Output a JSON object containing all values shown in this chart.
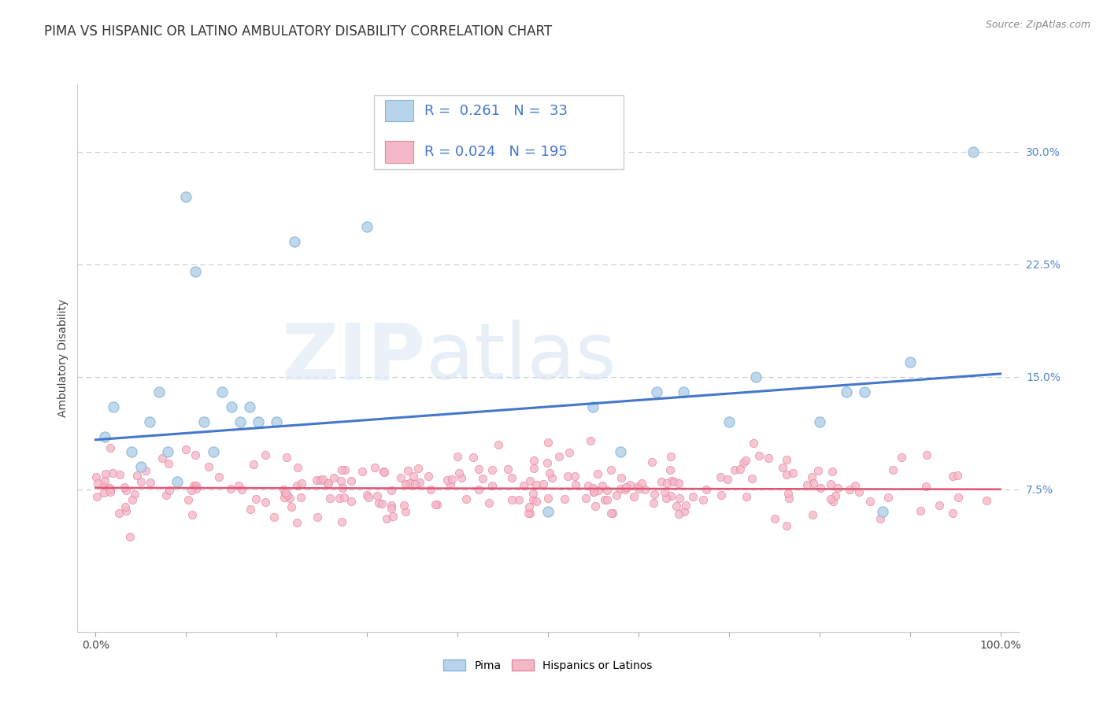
{
  "title": "PIMA VS HISPANIC OR LATINO AMBULATORY DISABILITY CORRELATION CHART",
  "source_text": "Source: ZipAtlas.com",
  "ylabel": "Ambulatory Disability",
  "xlim": [
    -0.02,
    1.02
  ],
  "ylim": [
    -0.02,
    0.345
  ],
  "yticks": [
    0.075,
    0.15,
    0.225,
    0.3
  ],
  "yticklabels": [
    "7.5%",
    "15.0%",
    "22.5%",
    "30.0%"
  ],
  "xtick_positions": [
    0.0,
    0.1,
    0.2,
    0.3,
    0.4,
    0.5,
    0.6,
    0.7,
    0.8,
    0.9,
    1.0
  ],
  "grid_color": "#cccccc",
  "background_color": "#ffffff",
  "pima_color": "#b8d4ea",
  "pima_edge_color": "#89b4d8",
  "latino_color": "#f4b8c8",
  "latino_edge_color": "#e8849c",
  "blue_line_color": "#4477cc",
  "pink_line_color": "#dd5577",
  "ytick_color": "#5588cc",
  "legend_R_pima": "0.261",
  "legend_N_pima": "33",
  "legend_R_latino": "0.024",
  "legend_N_latino": "195",
  "blue_line_y0": 0.108,
  "blue_line_y1": 0.152,
  "pink_line_y0": 0.076,
  "pink_line_y1": 0.075,
  "watermark_text": "ZIPatlas",
  "title_fontsize": 12,
  "axis_label_fontsize": 10,
  "tick_fontsize": 10,
  "legend_fontsize": 13,
  "source_fontsize": 9
}
